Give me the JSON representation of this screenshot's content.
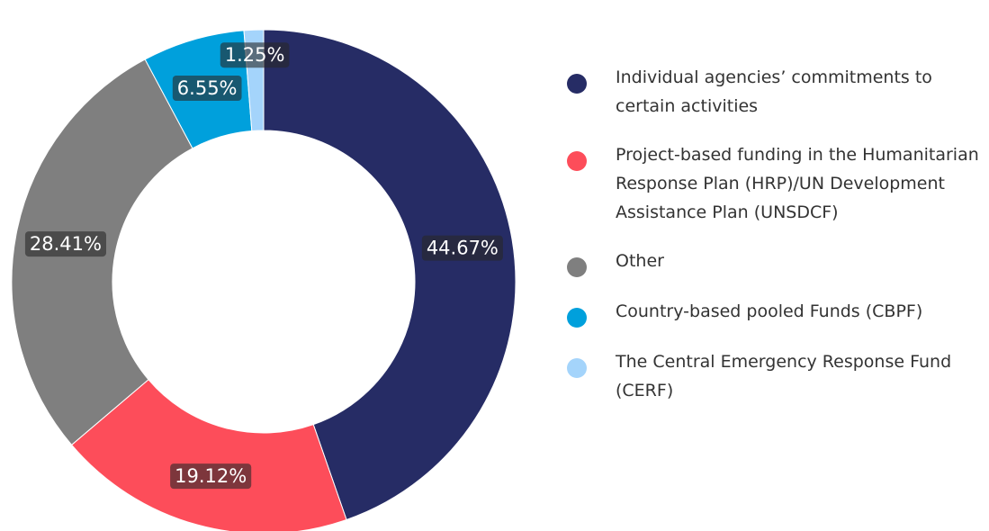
{
  "chart_data": {
    "type": "pie",
    "categories": [
      "Individual agencies’ commitments  to certain activities",
      "Project-based funding in the Humanitarian Response Plan (HRP)/UN Development Assistance Plan (UNSDCF)",
      "Other",
      "Country-based pooled Funds (CBPF)",
      "The Central Emergency Response Fund (CERF)"
    ],
    "values": [
      44.67,
      19.12,
      28.41,
      6.55,
      1.25
    ],
    "value_labels": [
      "44.67%",
      "19.12%",
      "28.41%",
      "6.55%",
      "1.25%"
    ],
    "colors": [
      "#262c65",
      "#fd4d5a",
      "#7f7f7f",
      "#00a0dc",
      "#a4d4fb"
    ],
    "donut": true,
    "legend": "right"
  }
}
